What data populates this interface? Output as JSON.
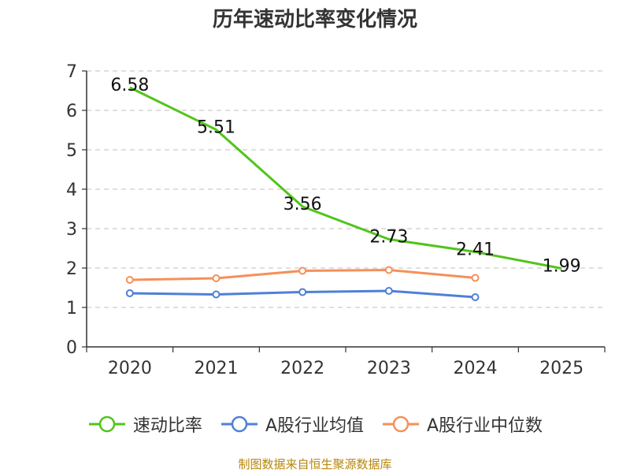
{
  "title": "历年速动比率变化情况",
  "source": "制图数据来自恒生聚源数据库",
  "chart_data": {
    "type": "line",
    "title": "历年速动比率变化情况",
    "categories": [
      "2020",
      "2021",
      "2022",
      "2023",
      "2024",
      "2025"
    ],
    "ylim": [
      0,
      7
    ],
    "yticks": [
      0,
      1,
      2,
      3,
      4,
      5,
      6,
      7
    ],
    "grid": true,
    "legend_position": "bottom",
    "series": [
      {
        "name": "速动比率",
        "color": "#52c41a",
        "values": [
          6.58,
          5.51,
          3.56,
          2.73,
          2.41,
          1.99
        ],
        "labels": [
          "6.58",
          "5.51",
          "3.56",
          "2.73",
          "2.41",
          "1.99"
        ],
        "show_labels": true,
        "show_markers": false
      },
      {
        "name": "A股行业均值",
        "color": "#4e80d8",
        "values": [
          1.36,
          1.33,
          1.39,
          1.42,
          1.26,
          null
        ],
        "show_labels": false,
        "show_markers": true
      },
      {
        "name": "A股行业中位数",
        "color": "#f5905a",
        "values": [
          1.7,
          1.74,
          1.93,
          1.95,
          1.75,
          null
        ],
        "show_labels": false,
        "show_markers": true
      }
    ]
  }
}
